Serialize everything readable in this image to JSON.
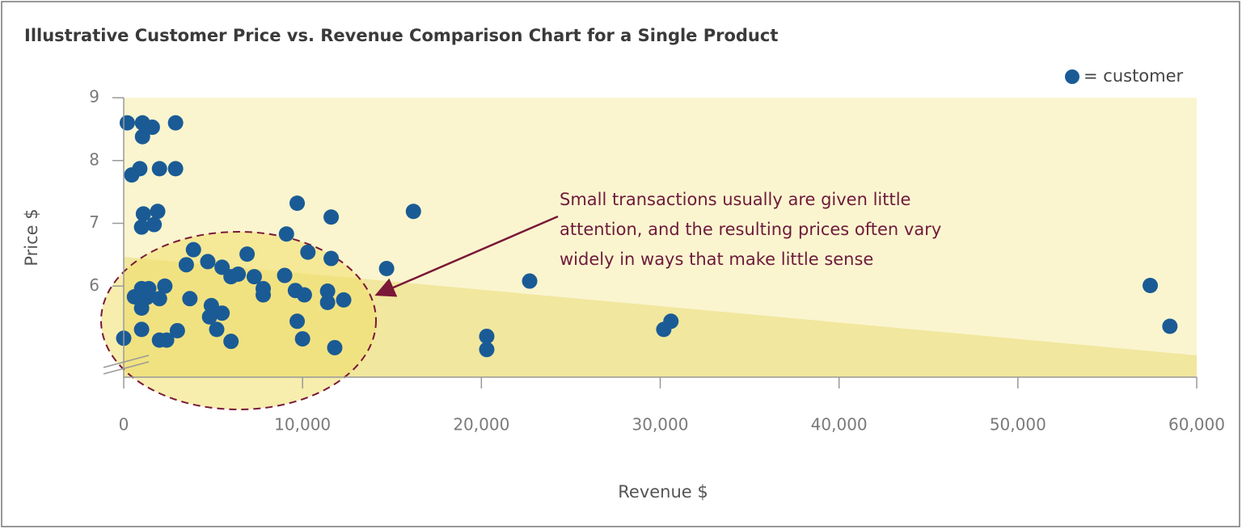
{
  "chart_data": {
    "type": "scatter",
    "title": "Illustrative Customer Price vs. Revenue Comparison Chart for a Single Product",
    "x_label": "Revenue $",
    "y_label": "Price $",
    "annotation": [
      "Small transactions usually are given little",
      "attention, and the resulting prices often vary",
      "widely in ways that make little sense"
    ],
    "legend": "top-right",
    "grid": false,
    "xlim": [
      0,
      60000
    ],
    "ylim": [
      4.55,
      9
    ],
    "xticks": [
      0,
      {
        "value": 10000,
        "label": "10,000"
      },
      {
        "value": 20000,
        "label": "20,000"
      },
      {
        "value": 30000,
        "label": "30,000"
      },
      {
        "value": 40000,
        "label": "40,000"
      },
      {
        "value": 50000,
        "label": "50,000"
      },
      {
        "value": 60000,
        "label": "60,000"
      }
    ],
    "yticks": [
      6,
      7,
      8,
      9
    ],
    "series": [
      {
        "name": "= customer",
        "color": "#1a5b96",
        "x": [
          0,
          200,
          450,
          900,
          1050,
          1050,
          1600,
          2900,
          2900,
          2000,
          1100,
          1900,
          1000,
          1700,
          600,
          1000,
          1000,
          1300,
          1400,
          1000,
          2000,
          2300,
          2000,
          2400,
          3000,
          3700,
          3500,
          3900,
          4700,
          4900,
          4800,
          5200,
          5500,
          5500,
          6000,
          6000,
          6400,
          6900,
          7300,
          7800,
          7800,
          9100,
          9700,
          9000,
          9600,
          9700,
          10100,
          10000,
          10300,
          11400,
          11400,
          11600,
          11600,
          11800,
          12300,
          14700,
          16200,
          20300,
          20300,
          22700,
          30200,
          30600,
          57400,
          58500
        ],
        "values": [
          5.17,
          8.6,
          7.77,
          7.87,
          8.6,
          8.38,
          8.53,
          8.6,
          7.87,
          7.87,
          7.15,
          7.19,
          6.94,
          6.98,
          5.83,
          5.96,
          5.65,
          5.82,
          5.96,
          5.31,
          5.8,
          6.0,
          5.14,
          5.14,
          5.29,
          5.8,
          6.34,
          6.58,
          6.39,
          5.69,
          5.51,
          5.31,
          5.57,
          6.3,
          6.15,
          5.12,
          6.19,
          6.51,
          6.15,
          5.96,
          5.86,
          6.83,
          7.32,
          6.17,
          5.93,
          5.44,
          5.86,
          5.16,
          6.54,
          5.92,
          5.74,
          7.1,
          6.44,
          5.02,
          5.78,
          6.28,
          7.19,
          4.99,
          5.2,
          6.08,
          5.31,
          5.44,
          6.01,
          5.36
        ]
      }
    ]
  }
}
